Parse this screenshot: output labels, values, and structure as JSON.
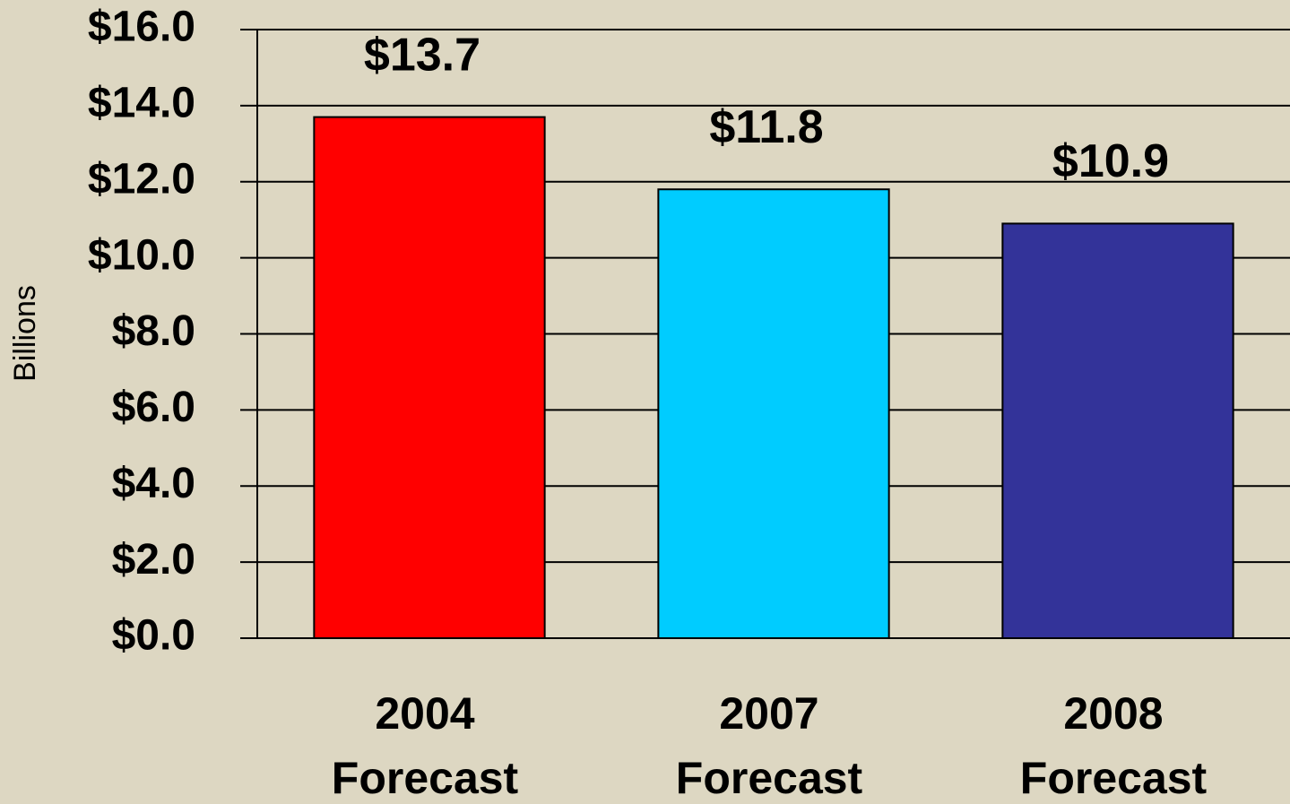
{
  "chart_data": {
    "type": "bar",
    "y_axis_label": "Billions",
    "categories": [
      [
        "2004",
        "Forecast"
      ],
      [
        "2007",
        "Forecast"
      ],
      [
        "2008",
        "Forecast"
      ]
    ],
    "values": [
      13.7,
      11.8,
      10.9
    ],
    "value_labels": [
      "$13.7",
      "$11.8",
      "$10.9"
    ],
    "colors": [
      "#ff0000",
      "#00ccff",
      "#333399"
    ],
    "ylim": [
      0,
      16
    ],
    "yticks": [
      {
        "value": 0,
        "label": "$0.0"
      },
      {
        "value": 2,
        "label": "$2.0"
      },
      {
        "value": 4,
        "label": "$4.0"
      },
      {
        "value": 6,
        "label": "$6.0"
      },
      {
        "value": 8,
        "label": "$8.0"
      },
      {
        "value": 10,
        "label": "$10.0"
      },
      {
        "value": 12,
        "label": "$12.0"
      },
      {
        "value": 14,
        "label": "$14.0"
      },
      {
        "value": 16,
        "label": "$16.0"
      }
    ],
    "grid": true
  }
}
